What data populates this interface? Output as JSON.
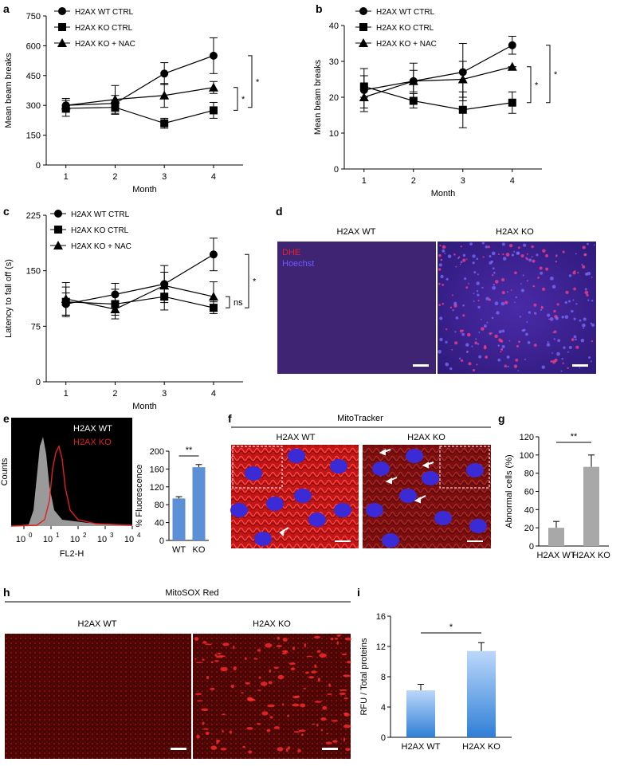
{
  "panels": {
    "a": {
      "label": "a",
      "chart_data": {
        "type": "line",
        "xlabel": "Month",
        "ylabel": "Mean beam breaks",
        "x": [
          1,
          2,
          3,
          4
        ],
        "xlim": [
          0.6,
          4.6
        ],
        "ylim": [
          0,
          750
        ],
        "yticks": [
          0,
          150,
          300,
          450,
          600,
          750
        ],
        "series": [
          {
            "name": "H2AX WT CTRL",
            "marker": "circle",
            "values": [
              300,
              310,
              460,
              550
            ],
            "errors": [
              35,
              40,
              55,
              90
            ]
          },
          {
            "name": "H2AX KO CTRL",
            "marker": "square",
            "values": [
              285,
              290,
              210,
              275
            ],
            "errors": [
              40,
              35,
              25,
              40
            ]
          },
          {
            "name": "H2AX KO + NAC",
            "marker": "triangle",
            "values": [
              300,
              330,
              350,
              390
            ],
            "errors": [
              25,
              70,
              60,
              30
            ]
          }
        ],
        "annotations": [
          "*",
          "*"
        ]
      }
    },
    "b": {
      "label": "b",
      "chart_data": {
        "type": "line",
        "xlabel": "Month",
        "ylabel": "Mean beam breaks",
        "x": [
          1,
          2,
          3,
          4
        ],
        "xlim": [
          0.6,
          4.6
        ],
        "ylim": [
          0,
          40
        ],
        "yticks": [
          0,
          10,
          20,
          30,
          40
        ],
        "series": [
          {
            "name": "H2AX WT CTRL",
            "marker": "circle",
            "values": [
              22,
              24.5,
              27,
              34.5
            ],
            "errors": [
              6,
              5,
              8,
              2.5
            ]
          },
          {
            "name": "H2AX KO CTRL",
            "marker": "square",
            "values": [
              23,
              19,
              16.5,
              18.5
            ],
            "errors": [
              3,
              2,
              5,
              3
            ]
          },
          {
            "name": "H2AX KO + NAC",
            "marker": "triangle",
            "values": [
              20,
              24.5,
              25,
              28.5
            ],
            "errors": [
              3,
              3,
              5,
              0
            ]
          }
        ],
        "annotations": [
          "*",
          "*"
        ]
      }
    },
    "c": {
      "label": "c",
      "chart_data": {
        "type": "line",
        "xlabel": "Month",
        "ylabel": "Latency to fall off (s)",
        "x": [
          1,
          2,
          3,
          4
        ],
        "xlim": [
          0.6,
          4.6
        ],
        "ylim": [
          0,
          225
        ],
        "yticks": [
          0,
          75,
          150,
          225
        ],
        "series": [
          {
            "name": "H2AX WT CTRL",
            "marker": "circle",
            "values": [
              105,
              118,
              132,
              172
            ],
            "errors": [
              15,
              15,
              25,
              22
            ]
          },
          {
            "name": "H2AX KO CTRL",
            "marker": "square",
            "values": [
              108,
              105,
              115,
              100
            ],
            "errors": [
              20,
              20,
              18,
              8
            ]
          },
          {
            "name": "H2AX KO + NAC",
            "marker": "triangle",
            "values": [
              112,
              98,
              130,
              115
            ],
            "errors": [
              22,
              8,
              18,
              20
            ]
          }
        ],
        "annotations": [
          "*",
          "ns"
        ]
      }
    },
    "d": {
      "label": "d",
      "left_title": "H2AX WT",
      "right_title": "H2AX KO",
      "stain1": "DHE",
      "stain2": "Hoechst",
      "stain1_color": "#e0242e",
      "stain2_color": "#6a5cff"
    },
    "e": {
      "label": "e",
      "hist": {
        "legend_wt": "H2AX WT",
        "legend_ko": "H2AX KO",
        "ylabel": "Counts",
        "xlabel": "FL2-H",
        "xticks_base": [
          "10",
          "10",
          "10",
          "10",
          "10"
        ],
        "xticks_exp": [
          "0",
          "1",
          "2",
          "3",
          "4"
        ]
      },
      "chart_data": {
        "type": "bar",
        "categories": [
          "WT",
          "KO"
        ],
        "values": [
          94,
          164
        ],
        "errors": [
          4,
          6
        ],
        "ylabel": "% Fluorescence",
        "ylim": [
          0,
          200
        ],
        "yticks": [
          0,
          40,
          80,
          120,
          160,
          200
        ],
        "annotation": "**",
        "color": "#5b8fd6"
      }
    },
    "f": {
      "label": "f",
      "title": "MitoTracker",
      "left_title": "H2AX WT",
      "right_title": "H2AX KO"
    },
    "g": {
      "label": "g",
      "chart_data": {
        "type": "bar",
        "categories": [
          "H2AX WT",
          "H2AX KO"
        ],
        "values": [
          20,
          87
        ],
        "errors": [
          7,
          13
        ],
        "ylabel": "Abnormal cells (%)",
        "ylim": [
          0,
          120
        ],
        "yticks": [
          0,
          20,
          40,
          60,
          80,
          100,
          120
        ],
        "annotation": "**",
        "color": "#a8a8a8"
      }
    },
    "h": {
      "label": "h",
      "title": "MitoSOX Red",
      "left_title": "H2AX WT",
      "right_title": "H2AX KO"
    },
    "i": {
      "label": "i",
      "chart_data": {
        "type": "bar",
        "categories": [
          "H2AX WT",
          "H2AX KO"
        ],
        "values": [
          6.2,
          11.4
        ],
        "errors": [
          0.8,
          1.1
        ],
        "ylabel": "RFU / Total proteins",
        "ylim": [
          0,
          16
        ],
        "yticks": [
          0,
          4,
          8,
          12,
          16
        ],
        "annotation": "*",
        "color_top": "#bcd8fb",
        "color_bottom": "#2f7fd6"
      }
    }
  }
}
